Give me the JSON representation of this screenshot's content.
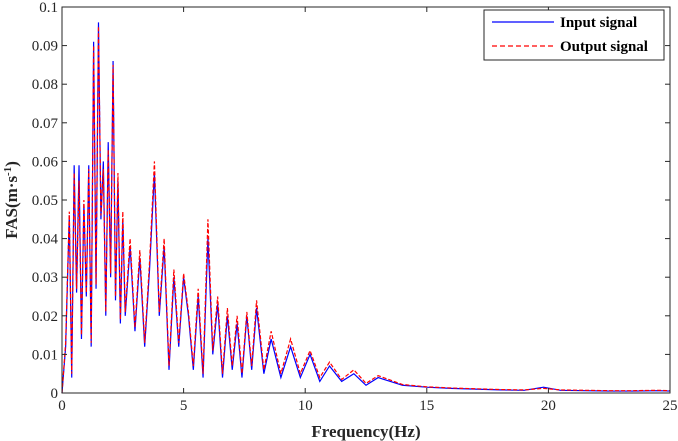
{
  "chart_data": {
    "type": "line",
    "title": "",
    "xlabel": "Frequency(Hz)",
    "ylabel_main": "FAS(m·s",
    "ylabel_exp": "-1",
    "ylabel_close": ")",
    "xlim": [
      0,
      25
    ],
    "ylim": [
      0,
      0.1
    ],
    "x_ticks": [
      0,
      5,
      10,
      15,
      20,
      25
    ],
    "x_tick_labels": [
      "0",
      "5",
      "10",
      "15",
      "20",
      "25"
    ],
    "y_ticks": [
      0,
      0.01,
      0.02,
      0.03,
      0.04,
      0.05,
      0.06,
      0.07,
      0.08,
      0.09,
      0.1
    ],
    "y_tick_labels": [
      "0",
      "0.01",
      "0.02",
      "0.03",
      "0.04",
      "0.05",
      "0.06",
      "0.07",
      "0.08",
      "0.09",
      "0.1"
    ],
    "grid": false,
    "legend_position": "top-right",
    "series": [
      {
        "name": "Input signal",
        "color": "#0000ff",
        "style": "solid",
        "x": [
          0,
          0.15,
          0.3,
          0.4,
          0.5,
          0.6,
          0.7,
          0.8,
          0.9,
          1.0,
          1.1,
          1.2,
          1.3,
          1.4,
          1.5,
          1.6,
          1.7,
          1.8,
          1.9,
          2.0,
          2.1,
          2.2,
          2.3,
          2.4,
          2.5,
          2.6,
          2.8,
          3.0,
          3.2,
          3.4,
          3.6,
          3.8,
          4.0,
          4.2,
          4.4,
          4.6,
          4.8,
          5.0,
          5.2,
          5.4,
          5.6,
          5.8,
          6.0,
          6.2,
          6.4,
          6.6,
          6.8,
          7.0,
          7.2,
          7.4,
          7.6,
          7.8,
          8.0,
          8.3,
          8.6,
          9.0,
          9.4,
          9.8,
          10.2,
          10.6,
          11.0,
          11.5,
          12.0,
          12.5,
          13.0,
          14.0,
          15.0,
          16.0,
          17.0,
          18.0,
          19.0,
          19.8,
          20.5,
          21.5,
          22.5,
          23.5,
          24.5,
          25.0
        ],
        "y": [
          0.0,
          0.012,
          0.046,
          0.004,
          0.059,
          0.026,
          0.059,
          0.014,
          0.049,
          0.025,
          0.059,
          0.012,
          0.091,
          0.027,
          0.096,
          0.045,
          0.06,
          0.02,
          0.065,
          0.03,
          0.086,
          0.024,
          0.055,
          0.018,
          0.045,
          0.02,
          0.038,
          0.016,
          0.035,
          0.012,
          0.032,
          0.057,
          0.02,
          0.038,
          0.006,
          0.03,
          0.012,
          0.03,
          0.02,
          0.006,
          0.025,
          0.004,
          0.04,
          0.01,
          0.023,
          0.004,
          0.02,
          0.006,
          0.018,
          0.004,
          0.02,
          0.006,
          0.022,
          0.005,
          0.014,
          0.004,
          0.012,
          0.004,
          0.01,
          0.003,
          0.007,
          0.003,
          0.005,
          0.002,
          0.004,
          0.002,
          0.0015,
          0.0012,
          0.001,
          0.0008,
          0.0007,
          0.0015,
          0.0007,
          0.0006,
          0.0005,
          0.0005,
          0.0006,
          0.0005
        ]
      },
      {
        "name": "Output signal",
        "color": "#ff0000",
        "style": "dashed",
        "x": [
          0,
          0.15,
          0.3,
          0.4,
          0.5,
          0.6,
          0.7,
          0.8,
          0.9,
          1.0,
          1.1,
          1.2,
          1.3,
          1.4,
          1.5,
          1.6,
          1.7,
          1.8,
          1.9,
          2.0,
          2.1,
          2.2,
          2.3,
          2.4,
          2.5,
          2.6,
          2.8,
          3.0,
          3.2,
          3.4,
          3.6,
          3.8,
          4.0,
          4.2,
          4.4,
          4.6,
          4.8,
          5.0,
          5.2,
          5.4,
          5.6,
          5.8,
          6.0,
          6.2,
          6.4,
          6.6,
          6.8,
          7.0,
          7.2,
          7.4,
          7.6,
          7.8,
          8.0,
          8.3,
          8.6,
          9.0,
          9.4,
          9.8,
          10.2,
          10.6,
          11.0,
          11.5,
          12.0,
          12.5,
          13.0,
          14.0,
          15.0,
          16.0,
          17.0,
          18.0,
          19.0,
          19.8,
          20.5,
          21.5,
          22.5,
          23.5,
          24.5,
          25.0
        ],
        "y": [
          0.0,
          0.013,
          0.047,
          0.005,
          0.057,
          0.027,
          0.055,
          0.015,
          0.05,
          0.026,
          0.058,
          0.013,
          0.09,
          0.028,
          0.095,
          0.046,
          0.058,
          0.021,
          0.063,
          0.031,
          0.085,
          0.025,
          0.057,
          0.019,
          0.047,
          0.021,
          0.04,
          0.017,
          0.037,
          0.013,
          0.034,
          0.06,
          0.021,
          0.04,
          0.007,
          0.032,
          0.013,
          0.031,
          0.021,
          0.007,
          0.027,
          0.005,
          0.045,
          0.011,
          0.025,
          0.005,
          0.022,
          0.007,
          0.02,
          0.005,
          0.021,
          0.007,
          0.024,
          0.006,
          0.016,
          0.005,
          0.014,
          0.005,
          0.011,
          0.004,
          0.008,
          0.0035,
          0.006,
          0.0025,
          0.0045,
          0.0022,
          0.0016,
          0.0013,
          0.0011,
          0.0009,
          0.0008,
          0.0012,
          0.0008,
          0.0007,
          0.0006,
          0.0006,
          0.0007,
          0.0006
        ]
      }
    ]
  }
}
